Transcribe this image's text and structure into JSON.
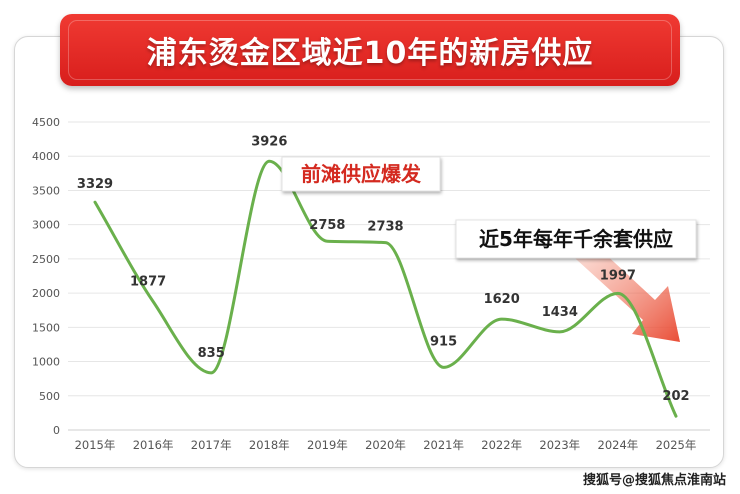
{
  "title": "浦东烫金区域近10年的新房供应",
  "watermark": "搜狐号@搜狐焦点淮南站",
  "annotations": {
    "peak_label": "前滩供应爆发",
    "trend_label": "近5年每年千余套供应"
  },
  "colors": {
    "banner": "#e0231f",
    "line": "#6ab04c",
    "arrow": "#e8442c",
    "peak_text": "#d42a20"
  },
  "chart_data": {
    "type": "line",
    "categories": [
      "2015年",
      "2016年",
      "2017年",
      "2018年",
      "2019年",
      "2020年",
      "2021年",
      "2022年",
      "2023年",
      "2024年",
      "2025年"
    ],
    "values": [
      3329,
      1877,
      835,
      3926,
      2758,
      2738,
      915,
      1620,
      1434,
      1997,
      202
    ],
    "ylim": [
      0,
      4500
    ],
    "yticks": [
      0,
      500,
      1000,
      1500,
      2000,
      2500,
      3000,
      3500,
      4000,
      4500
    ],
    "grid": true,
    "title": "浦东烫金区域近10年的新房供应",
    "xlabel": "",
    "ylabel": ""
  }
}
